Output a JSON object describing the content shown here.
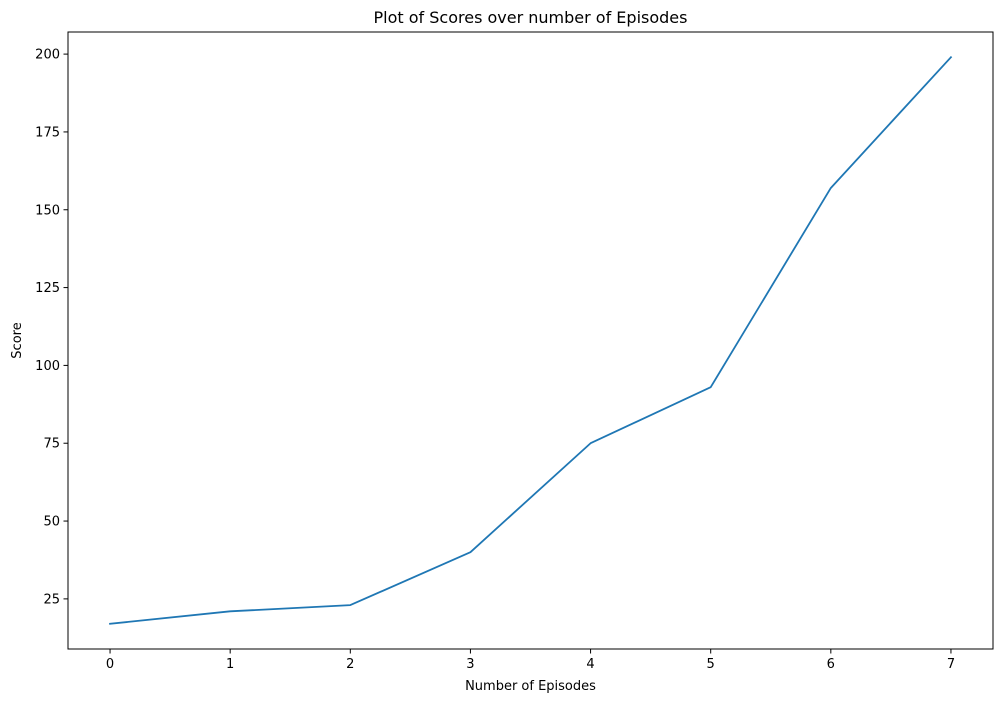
{
  "chart_data": {
    "type": "line",
    "title": "Plot of Scores over number of Episodes",
    "xlabel": "Number of Episodes",
    "ylabel": "Score",
    "x": [
      0,
      1,
      2,
      3,
      4,
      5,
      6,
      7
    ],
    "series": [
      {
        "values": [
          17,
          21,
          23,
          40,
          75,
          93,
          157,
          199
        ],
        "color": "#1f77b4"
      }
    ],
    "xticks": [
      0,
      1,
      2,
      3,
      4,
      5,
      6,
      7
    ],
    "yticks": [
      25,
      50,
      75,
      100,
      125,
      150,
      175,
      200
    ],
    "xlim": [
      -0.35,
      7.35
    ],
    "ylim": [
      8.9,
      207.1
    ],
    "grid": false,
    "legend": "none"
  }
}
